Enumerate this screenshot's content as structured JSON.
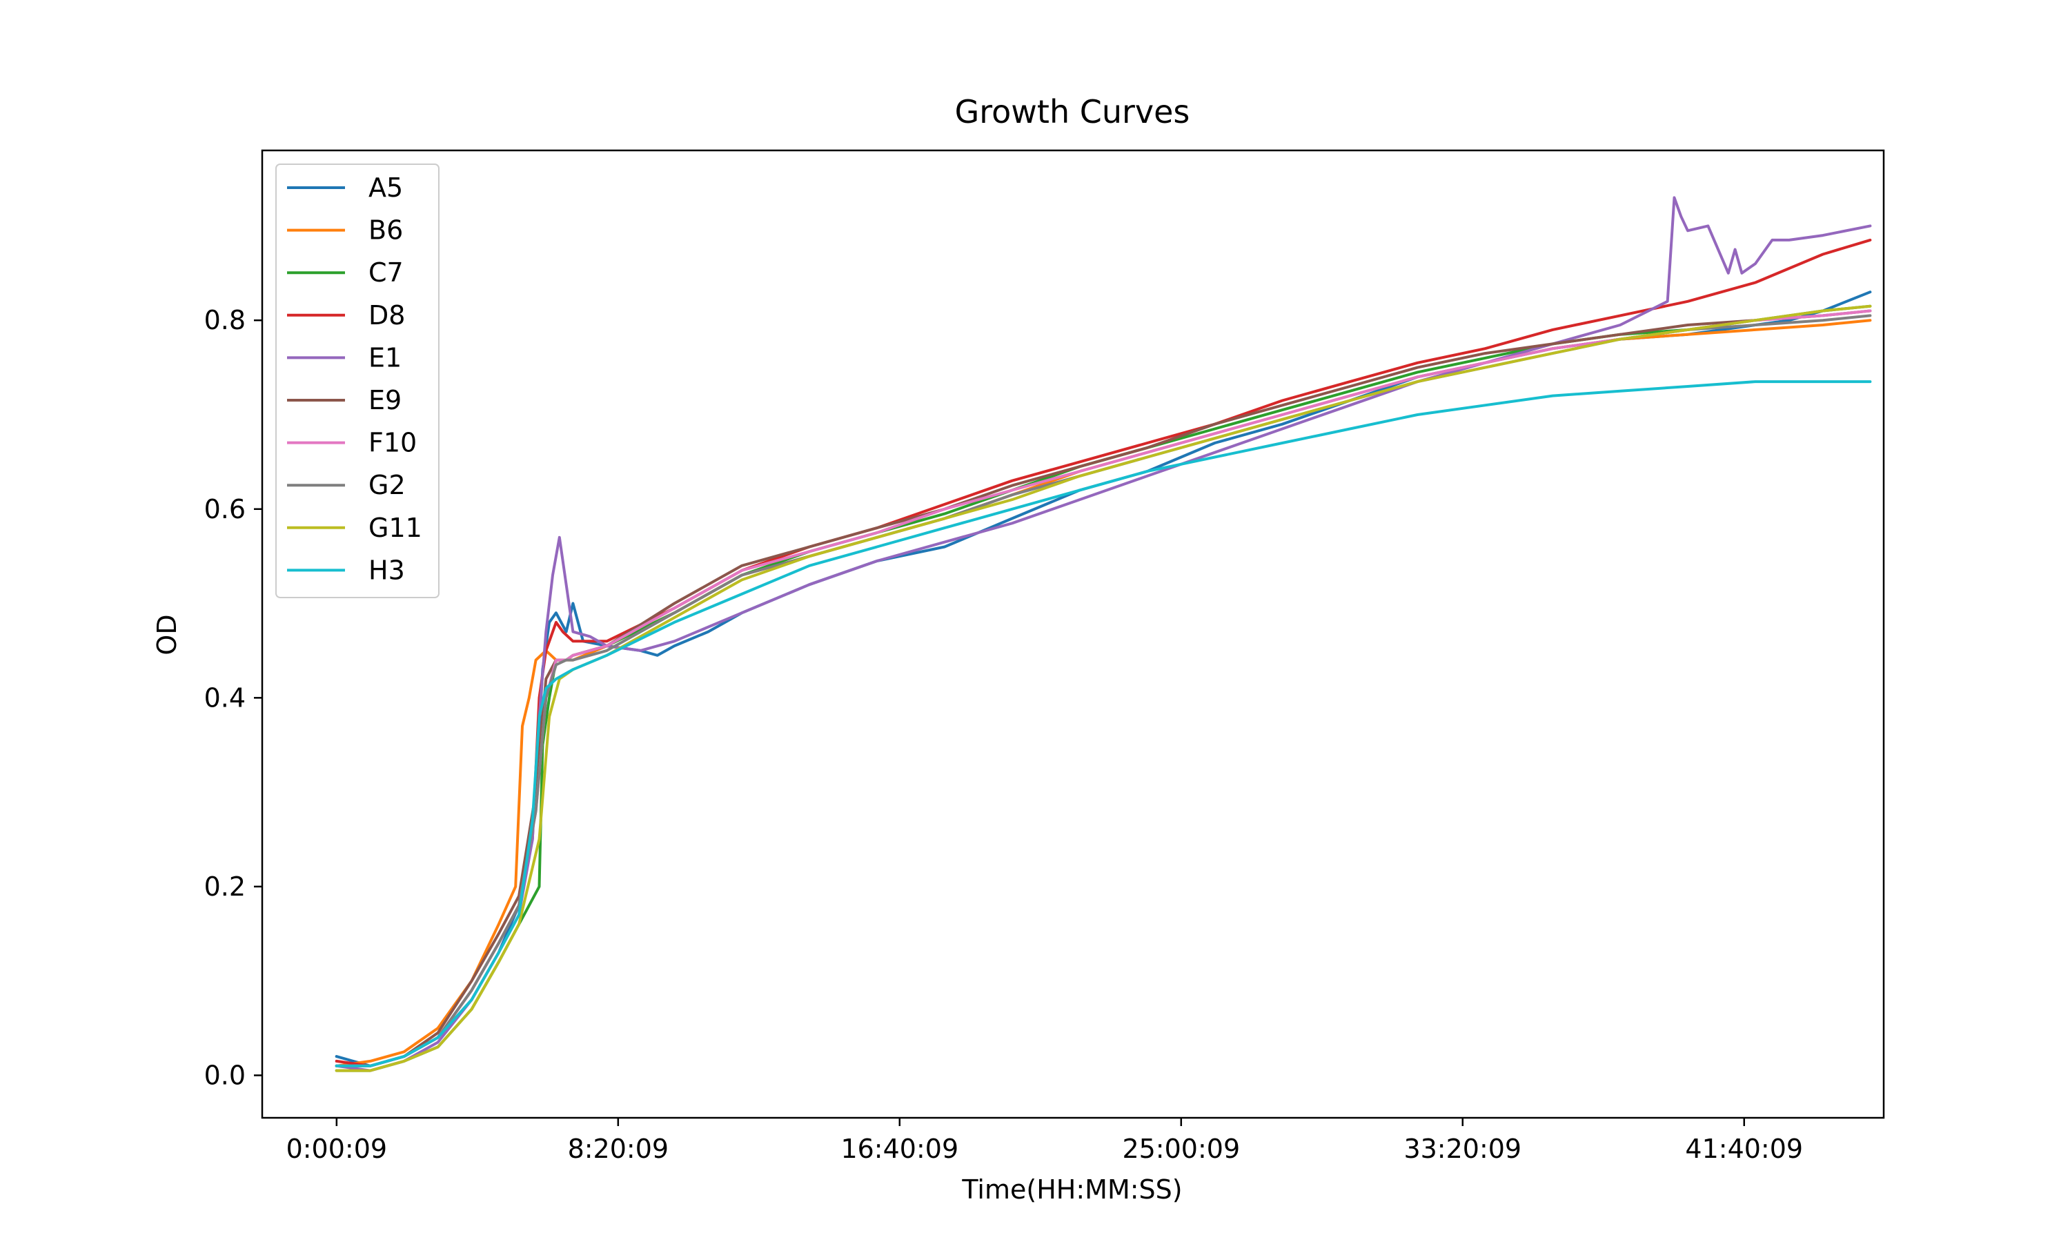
{
  "chart_data": {
    "type": "line",
    "title": "Growth Curves",
    "xlabel": "Time(HH:MM:SS)",
    "ylabel": "OD",
    "xlim": [
      -2.2,
      45.8
    ],
    "ylim": [
      -0.045,
      0.98
    ],
    "x_unit": "hours",
    "x_ticks": [
      {
        "value": 0.0025,
        "label": "0:00:09"
      },
      {
        "value": 8.3358,
        "label": "8:20:09"
      },
      {
        "value": 16.6692,
        "label": "16:40:09"
      },
      {
        "value": 25.0025,
        "label": "25:00:09"
      },
      {
        "value": 33.3358,
        "label": "33:20:09"
      },
      {
        "value": 41.6692,
        "label": "41:40:09"
      }
    ],
    "y_ticks": [
      {
        "value": 0.0,
        "label": "0.0"
      },
      {
        "value": 0.2,
        "label": "0.2"
      },
      {
        "value": 0.4,
        "label": "0.4"
      },
      {
        "value": 0.6,
        "label": "0.6"
      },
      {
        "value": 0.8,
        "label": "0.8"
      }
    ],
    "grid": false,
    "legend": "upper-left",
    "series": [
      {
        "name": "A5",
        "color": "#1f77b4",
        "x": [
          0,
          1,
          2,
          3,
          4,
          4.8,
          5.4,
          5.9,
          6.1,
          6.3,
          6.5,
          6.8,
          7.0,
          7.3,
          8,
          9,
          9.5,
          10,
          11,
          12,
          14,
          16,
          18,
          20,
          22,
          24,
          26,
          28,
          30,
          32,
          34,
          36,
          38,
          40,
          42,
          43,
          44,
          45.4
        ],
        "y": [
          0.02,
          0.01,
          0.02,
          0.04,
          0.08,
          0.13,
          0.18,
          0.3,
          0.43,
          0.48,
          0.49,
          0.47,
          0.5,
          0.46,
          0.455,
          0.45,
          0.445,
          0.455,
          0.47,
          0.49,
          0.52,
          0.545,
          0.56,
          0.59,
          0.62,
          0.64,
          0.67,
          0.69,
          0.715,
          0.74,
          0.755,
          0.77,
          0.78,
          0.785,
          0.795,
          0.8,
          0.81,
          0.83
        ]
      },
      {
        "name": "B6",
        "color": "#ff7f0e",
        "x": [
          0,
          1,
          2,
          3,
          4,
          4.8,
          5.3,
          5.5,
          5.7,
          5.9,
          6.2,
          6.5,
          7,
          8,
          10,
          12,
          14,
          16,
          18,
          20,
          22,
          24,
          26,
          28,
          30,
          32,
          34,
          36,
          38,
          40,
          42,
          44,
          45.4
        ],
        "y": [
          0.01,
          0.015,
          0.025,
          0.05,
          0.1,
          0.16,
          0.2,
          0.37,
          0.4,
          0.44,
          0.45,
          0.44,
          0.44,
          0.455,
          0.49,
          0.53,
          0.55,
          0.57,
          0.59,
          0.615,
          0.64,
          0.66,
          0.68,
          0.7,
          0.72,
          0.74,
          0.755,
          0.77,
          0.78,
          0.785,
          0.79,
          0.795,
          0.8
        ]
      },
      {
        "name": "C7",
        "color": "#2ca02c",
        "x": [
          0,
          1,
          2,
          3,
          4,
          4.8,
          5.4,
          6.0,
          6.1,
          6.3,
          6.5,
          6.8,
          7,
          8,
          10,
          12,
          14,
          16,
          18,
          20,
          22,
          24,
          26,
          28,
          30,
          32,
          34,
          36,
          38,
          40,
          42,
          44,
          45.4
        ],
        "y": [
          0.005,
          0.005,
          0.015,
          0.03,
          0.07,
          0.12,
          0.16,
          0.2,
          0.35,
          0.4,
          0.44,
          0.44,
          0.445,
          0.455,
          0.49,
          0.53,
          0.555,
          0.575,
          0.595,
          0.62,
          0.645,
          0.665,
          0.685,
          0.705,
          0.725,
          0.745,
          0.76,
          0.775,
          0.785,
          0.79,
          0.8,
          0.81,
          0.815
        ]
      },
      {
        "name": "D8",
        "color": "#d62728",
        "x": [
          0,
          1,
          2,
          3,
          4,
          4.8,
          5.4,
          5.8,
          6.0,
          6.2,
          6.5,
          6.7,
          7,
          7.5,
          8,
          10,
          12,
          14,
          16,
          18,
          20,
          22,
          24,
          26,
          28,
          30,
          32,
          34,
          36,
          38,
          40,
          42,
          43,
          44,
          45.4
        ],
        "y": [
          0.015,
          0.01,
          0.02,
          0.04,
          0.09,
          0.14,
          0.18,
          0.25,
          0.4,
          0.45,
          0.48,
          0.47,
          0.46,
          0.46,
          0.46,
          0.495,
          0.535,
          0.56,
          0.58,
          0.605,
          0.63,
          0.65,
          0.67,
          0.69,
          0.715,
          0.735,
          0.755,
          0.77,
          0.79,
          0.805,
          0.82,
          0.84,
          0.855,
          0.87,
          0.885
        ]
      },
      {
        "name": "E1",
        "color": "#9467bd",
        "x": [
          0,
          1,
          2,
          3,
          4,
          4.8,
          5.4,
          5.8,
          6.0,
          6.2,
          6.4,
          6.6,
          6.8,
          7.0,
          7.5,
          8,
          9,
          10,
          12,
          14,
          16,
          18,
          20,
          22,
          24,
          26,
          28,
          30,
          32,
          34,
          36,
          38,
          39.4,
          39.6,
          39.8,
          40,
          40.6,
          41.2,
          41.4,
          41.6,
          42.0,
          42.5,
          43,
          44,
          45.4
        ],
        "y": [
          0.01,
          0.005,
          0.015,
          0.035,
          0.08,
          0.13,
          0.17,
          0.25,
          0.38,
          0.47,
          0.53,
          0.57,
          0.52,
          0.47,
          0.465,
          0.455,
          0.45,
          0.46,
          0.49,
          0.52,
          0.545,
          0.565,
          0.585,
          0.61,
          0.635,
          0.66,
          0.685,
          0.71,
          0.735,
          0.755,
          0.775,
          0.795,
          0.82,
          0.93,
          0.91,
          0.895,
          0.9,
          0.85,
          0.875,
          0.85,
          0.86,
          0.885,
          0.885,
          0.89,
          0.9
        ]
      },
      {
        "name": "E9",
        "color": "#8c564b",
        "x": [
          0,
          1,
          2,
          3,
          4,
          4.8,
          5.4,
          5.9,
          6.2,
          6.5,
          6.8,
          7,
          8,
          10,
          12,
          14,
          16,
          18,
          20,
          22,
          24,
          26,
          28,
          30,
          32,
          34,
          36,
          38,
          40,
          42,
          44,
          45.4
        ],
        "y": [
          0.01,
          0.01,
          0.02,
          0.045,
          0.1,
          0.15,
          0.19,
          0.3,
          0.42,
          0.44,
          0.44,
          0.445,
          0.455,
          0.5,
          0.54,
          0.56,
          0.58,
          0.6,
          0.625,
          0.645,
          0.665,
          0.69,
          0.71,
          0.73,
          0.75,
          0.765,
          0.775,
          0.785,
          0.795,
          0.8,
          0.805,
          0.81
        ]
      },
      {
        "name": "F10",
        "color": "#e377c2",
        "x": [
          0,
          1,
          2,
          3,
          4,
          4.8,
          5.4,
          5.9,
          6.2,
          6.5,
          6.8,
          7,
          8,
          10,
          12,
          14,
          16,
          18,
          20,
          22,
          24,
          26,
          28,
          30,
          32,
          34,
          36,
          38,
          40,
          42,
          44,
          45.4
        ],
        "y": [
          0.01,
          0.01,
          0.02,
          0.04,
          0.09,
          0.14,
          0.18,
          0.28,
          0.4,
          0.44,
          0.44,
          0.445,
          0.455,
          0.495,
          0.535,
          0.555,
          0.575,
          0.6,
          0.62,
          0.64,
          0.66,
          0.68,
          0.7,
          0.72,
          0.74,
          0.755,
          0.77,
          0.78,
          0.79,
          0.8,
          0.805,
          0.81
        ]
      },
      {
        "name": "G2",
        "color": "#7f7f7f",
        "x": [
          0,
          1,
          2,
          3,
          4,
          4.8,
          5.4,
          5.9,
          6.2,
          6.5,
          6.8,
          7,
          8,
          10,
          12,
          14,
          16,
          18,
          20,
          22,
          24,
          26,
          28,
          30,
          32,
          34,
          36,
          38,
          40,
          42,
          44,
          45.4
        ],
        "y": [
          0.01,
          0.01,
          0.02,
          0.04,
          0.09,
          0.14,
          0.18,
          0.28,
          0.4,
          0.435,
          0.44,
          0.44,
          0.45,
          0.49,
          0.53,
          0.55,
          0.57,
          0.59,
          0.615,
          0.635,
          0.655,
          0.675,
          0.695,
          0.715,
          0.735,
          0.75,
          0.765,
          0.78,
          0.79,
          0.795,
          0.8,
          0.805
        ]
      },
      {
        "name": "G11",
        "color": "#bcbd22",
        "x": [
          0,
          1,
          2,
          3,
          4,
          4.8,
          5.4,
          6.0,
          6.3,
          6.6,
          7,
          8,
          10,
          12,
          14,
          16,
          18,
          20,
          22,
          24,
          26,
          28,
          30,
          32,
          34,
          36,
          38,
          40,
          42,
          44,
          45.4
        ],
        "y": [
          0.005,
          0.005,
          0.015,
          0.03,
          0.07,
          0.12,
          0.16,
          0.25,
          0.38,
          0.42,
          0.43,
          0.445,
          0.485,
          0.525,
          0.55,
          0.57,
          0.59,
          0.61,
          0.635,
          0.655,
          0.675,
          0.695,
          0.715,
          0.735,
          0.75,
          0.765,
          0.78,
          0.79,
          0.8,
          0.81,
          0.815
        ]
      },
      {
        "name": "H3",
        "color": "#17becf",
        "x": [
          0,
          1,
          2,
          3,
          4,
          4.8,
          5.4,
          5.8,
          6.0,
          6.2,
          6.5,
          7,
          8,
          10,
          12,
          14,
          16,
          18,
          20,
          22,
          24,
          26,
          28,
          30,
          32,
          34,
          36,
          38,
          40,
          42,
          44,
          45.4
        ],
        "y": [
          0.01,
          0.01,
          0.02,
          0.04,
          0.08,
          0.13,
          0.17,
          0.27,
          0.38,
          0.41,
          0.42,
          0.43,
          0.445,
          0.48,
          0.51,
          0.54,
          0.56,
          0.58,
          0.6,
          0.62,
          0.64,
          0.655,
          0.67,
          0.685,
          0.7,
          0.71,
          0.72,
          0.725,
          0.73,
          0.735,
          0.735,
          0.735
        ]
      }
    ]
  }
}
